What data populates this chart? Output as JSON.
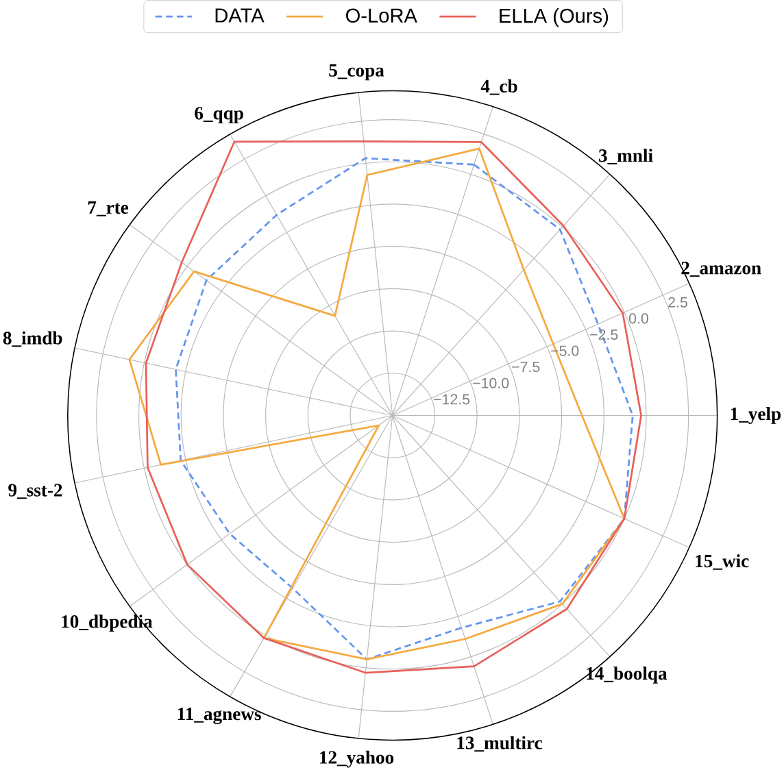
{
  "chart_data": {
    "type": "radar",
    "categories": [
      "4_cb",
      "3_mnli",
      "2_amazon",
      "1_yelp",
      "15_wic",
      "14_boolqa",
      "13_multirc",
      "12_yahoo",
      "11_agnews",
      "10_dbpedia",
      "9_sst-2",
      "8_imdb",
      "7_rte",
      "6_qqp",
      "5_copa"
    ],
    "series": [
      {
        "name": "DATA",
        "color": "#6495ed",
        "line_style": "dashed",
        "values": [
          0.6,
          -0.2,
          -1.7,
          -0.8,
          0.0,
          -0.2,
          -1.8,
          -0.5,
          -3.2,
          -3.1,
          -2.2,
          -1.9,
          -1.4,
          -1.3,
          0.3
        ]
      },
      {
        "name": "O-LoRA",
        "color": "#f5a93f",
        "line_style": "solid",
        "values": [
          1.6,
          -3.4,
          -4.6,
          -3.8,
          0.0,
          0.0,
          -1.1,
          -0.5,
          0.2,
          -14.0,
          -1.0,
          0.9,
          -0.5,
          -8.2,
          -0.7
        ]
      },
      {
        "name": "ELLA (Ours)",
        "color": "#e8605a",
        "line_style": "solid",
        "values": [
          2.0,
          0.1,
          -0.1,
          -0.3,
          0.0,
          0.4,
          0.6,
          0.3,
          0.2,
          0.0,
          -0.2,
          -0.1,
          0.4,
          3.7,
          1.3
        ]
      }
    ],
    "ylim": [
      -15,
      4.2
    ],
    "yticks": [
      {
        "value": -12.5,
        "label": "−12.5"
      },
      {
        "value": -10,
        "label": "−10.0"
      },
      {
        "value": -7.5,
        "label": "−7.5"
      },
      {
        "value": -5,
        "label": "−5.0"
      },
      {
        "value": -2.5,
        "label": "−2.5"
      },
      {
        "value": 0,
        "label": "0.0"
      },
      {
        "value": 2.5,
        "label": "2.5"
      }
    ],
    "grid": true,
    "legend": "top"
  }
}
